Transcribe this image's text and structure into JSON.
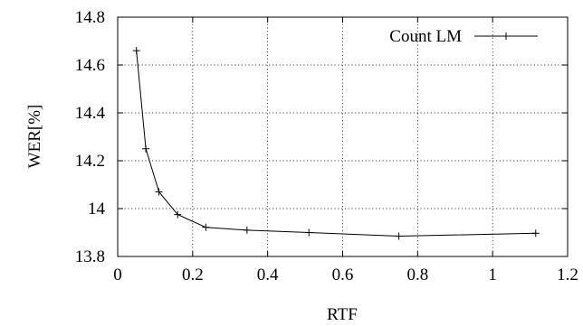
{
  "chart_data": {
    "type": "line",
    "title": "",
    "xlabel": "RTF",
    "ylabel": "WER[%]",
    "xlim": [
      0,
      1.2
    ],
    "ylim": [
      13.8,
      14.8
    ],
    "xticks": [
      "0",
      "0.2",
      "0.4",
      "0.6",
      "0.8",
      "1",
      "1.2"
    ],
    "yticks": [
      "13.8",
      "14",
      "14.2",
      "14.4",
      "14.6",
      "14.8"
    ],
    "grid": true,
    "legend_position": "top-right",
    "series": [
      {
        "name": "Count LM",
        "color": "#000000",
        "marker": "plus",
        "x": [
          0.05,
          0.075,
          0.11,
          0.16,
          0.235,
          0.345,
          0.51,
          0.75,
          1.115
        ],
        "y": [
          14.66,
          14.25,
          14.07,
          13.975,
          13.922,
          13.91,
          13.9,
          13.885,
          13.897
        ]
      }
    ]
  }
}
